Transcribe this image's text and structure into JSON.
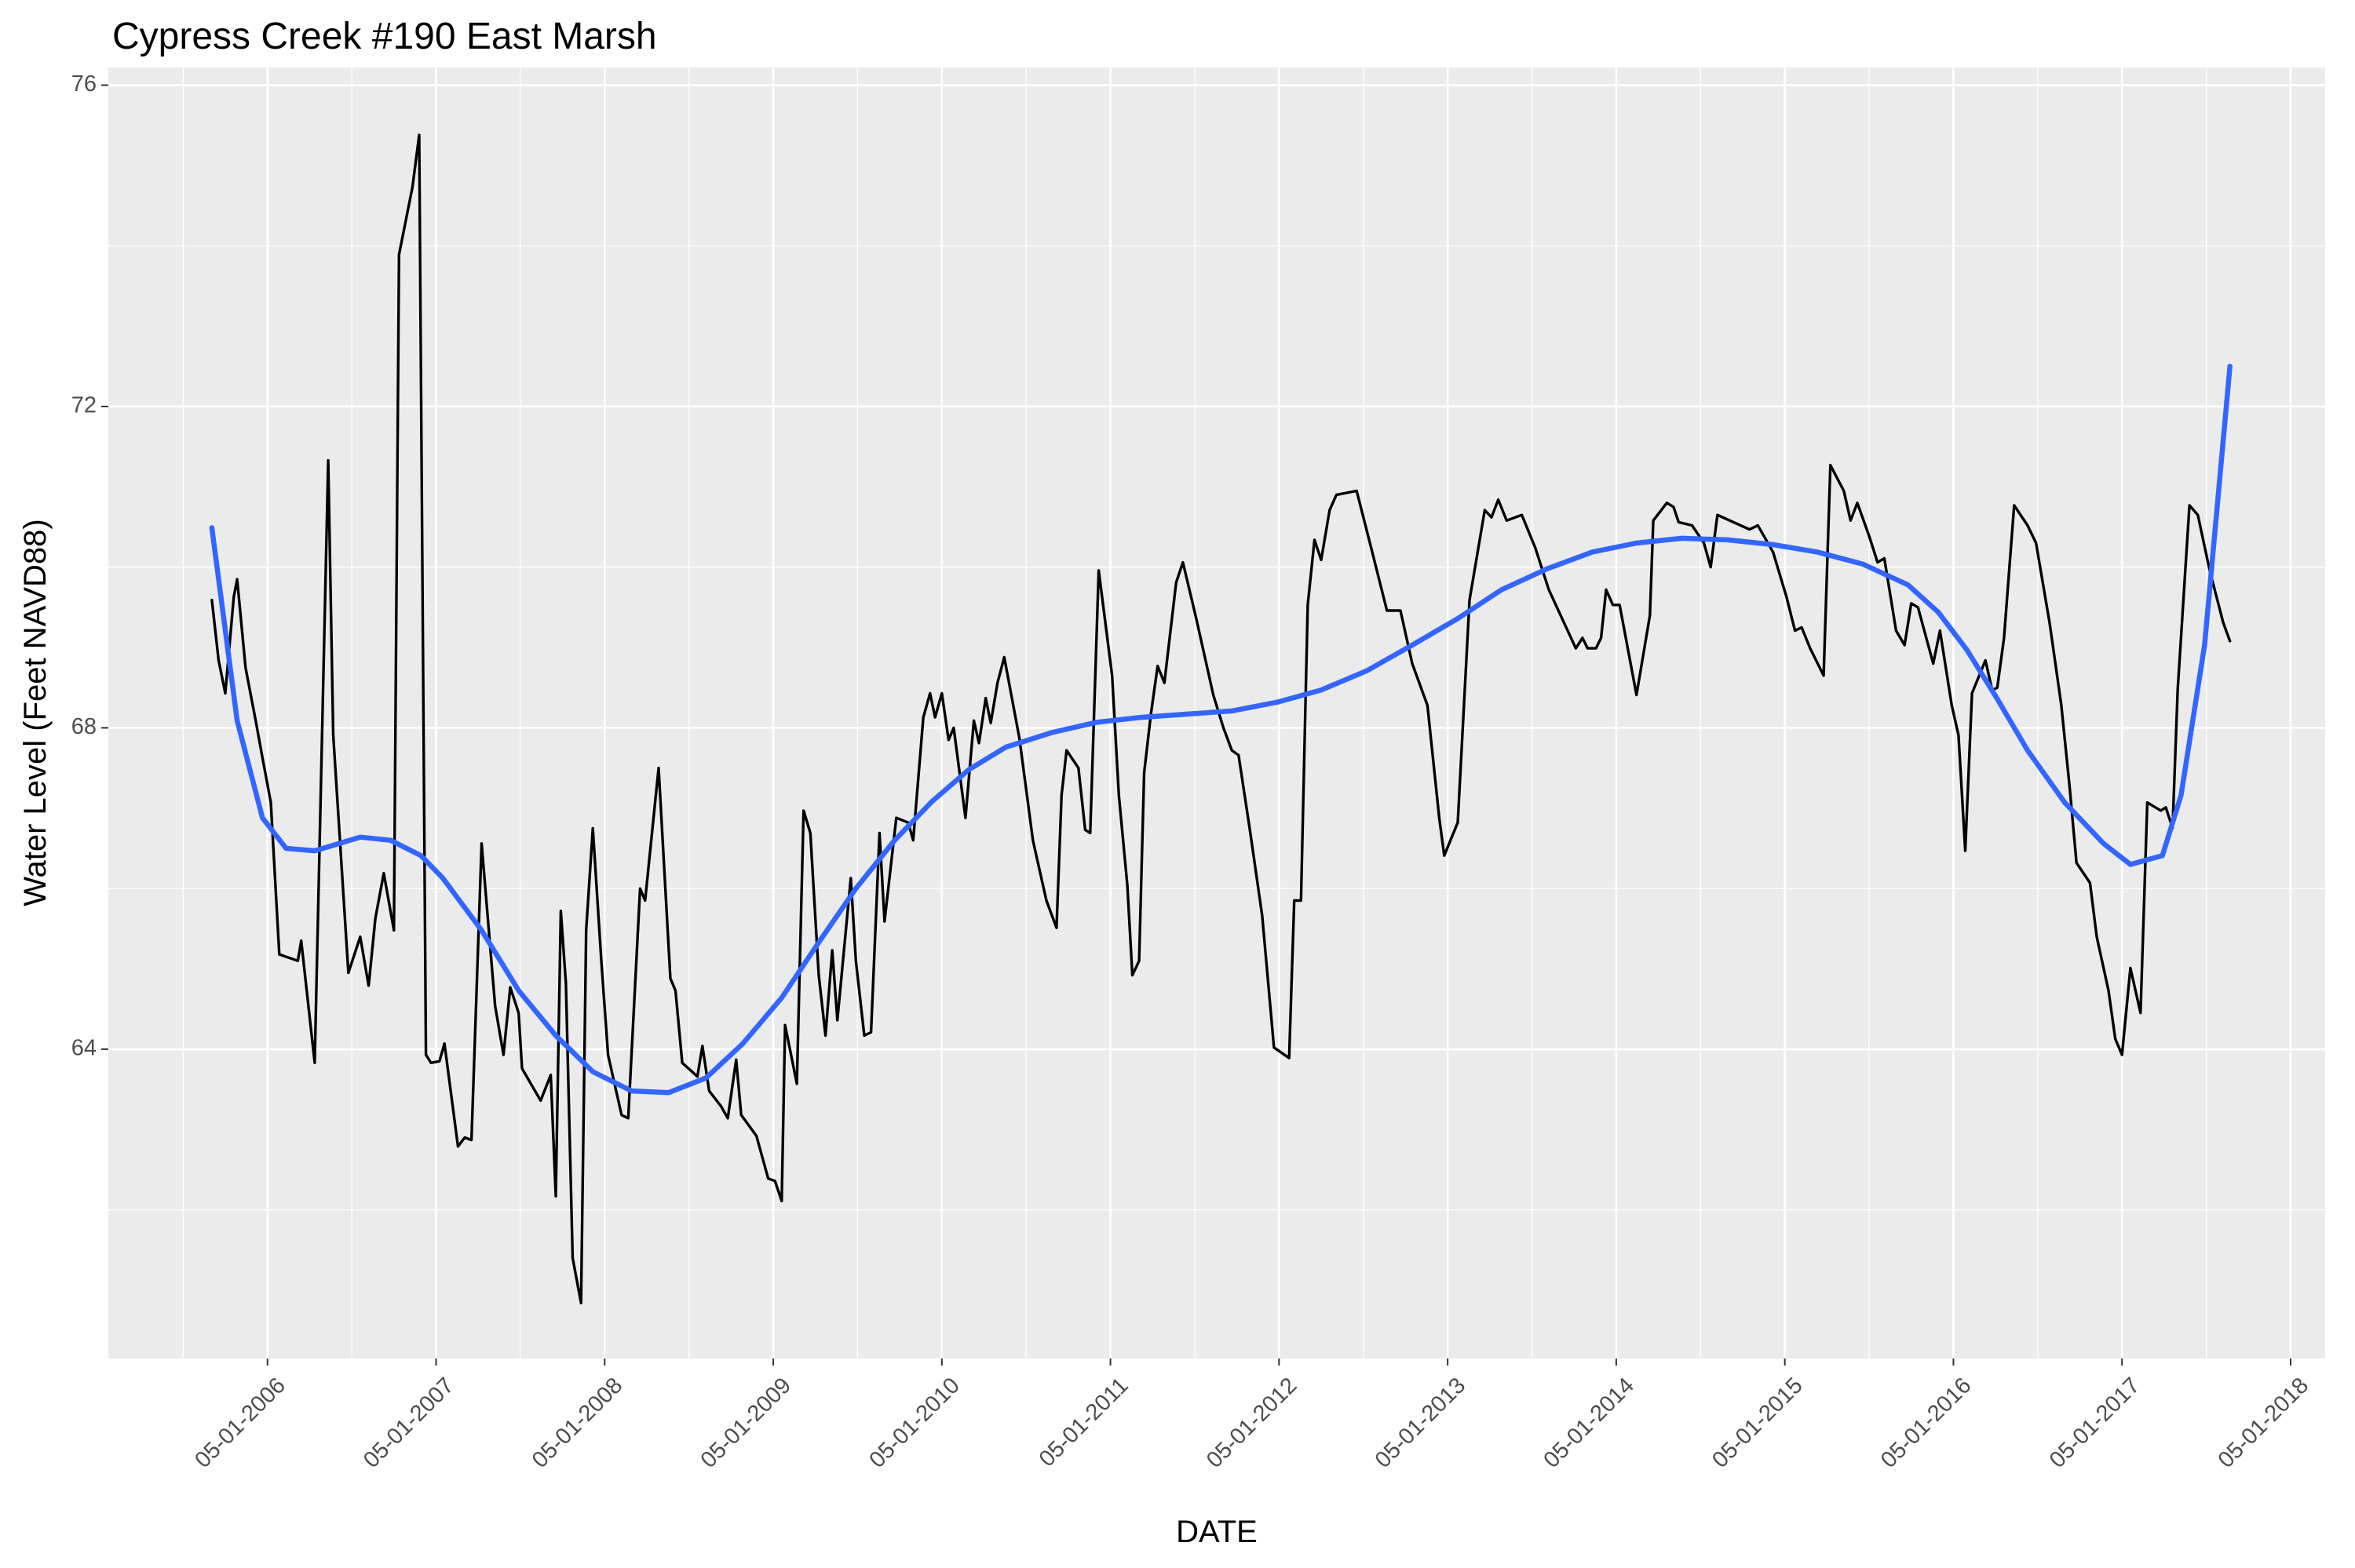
{
  "chart_data": {
    "type": "line",
    "title": "Cypress Creek #190 East Marsh",
    "x_label": "DATE",
    "y_label": "Water Level (Feet NAVD88)",
    "xlim": [
      2005.386,
      2018.535
    ],
    "ylim": [
      60.15,
      76.22
    ],
    "xticks": [
      {
        "value": 2006.33,
        "label": "05-01-2006"
      },
      {
        "value": 2007.33,
        "label": "05-01-2007"
      },
      {
        "value": 2008.33,
        "label": "05-01-2008"
      },
      {
        "value": 2009.33,
        "label": "05-01-2009"
      },
      {
        "value": 2010.33,
        "label": "05-01-2010"
      },
      {
        "value": 2011.33,
        "label": "05-01-2011"
      },
      {
        "value": 2012.33,
        "label": "05-01-2012"
      },
      {
        "value": 2013.33,
        "label": "05-01-2013"
      },
      {
        "value": 2014.33,
        "label": "05-01-2014"
      },
      {
        "value": 2015.33,
        "label": "05-01-2015"
      },
      {
        "value": 2016.33,
        "label": "05-01-2016"
      },
      {
        "value": 2017.33,
        "label": "05-01-2017"
      },
      {
        "value": 2018.33,
        "label": "05-01-2018"
      }
    ],
    "yticks": [
      64,
      68,
      72,
      76
    ],
    "grid": true,
    "series": [
      {
        "color": "#000000",
        "x": [
          2006.0,
          2006.04,
          2006.08,
          2006.13,
          2006.15,
          2006.2,
          2006.26,
          2006.3,
          2006.35,
          2006.4,
          2006.51,
          2006.53,
          2006.61,
          2006.69,
          2006.72,
          2006.81,
          2006.88,
          2006.93,
          2006.97,
          2007.02,
          2007.08,
          2007.11,
          2007.19,
          2007.23,
          2007.27,
          2007.3,
          2007.35,
          2007.38,
          2007.46,
          2007.5,
          2007.54,
          2007.6,
          2007.68,
          2007.73,
          2007.77,
          2007.82,
          2007.84,
          2007.95,
          2008.01,
          2008.04,
          2008.07,
          2008.1,
          2008.14,
          2008.19,
          2008.22,
          2008.26,
          2008.31,
          2008.35,
          2008.43,
          2008.47,
          2008.54,
          2008.57,
          2008.65,
          2008.72,
          2008.75,
          2008.79,
          2008.88,
          2008.91,
          2008.95,
          2009.02,
          2009.06,
          2009.11,
          2009.14,
          2009.23,
          2009.3,
          2009.34,
          2009.38,
          2009.4,
          2009.47,
          2009.51,
          2009.55,
          2009.6,
          2009.64,
          2009.68,
          2009.71,
          2009.79,
          2009.82,
          2009.87,
          2009.91,
          2009.96,
          2009.99,
          2010.06,
          2010.13,
          2010.16,
          2010.22,
          2010.26,
          2010.29,
          2010.33,
          2010.37,
          2010.4,
          2010.47,
          2010.52,
          2010.55,
          2010.59,
          2010.62,
          2010.66,
          2010.7,
          2010.79,
          2010.87,
          2010.95,
          2011.01,
          2011.04,
          2011.07,
          2011.14,
          2011.18,
          2011.21,
          2011.26,
          2011.34,
          2011.38,
          2011.43,
          2011.46,
          2011.5,
          2011.53,
          2011.57,
          2011.61,
          2011.65,
          2011.72,
          2011.76,
          2011.84,
          2011.94,
          2012.0,
          2012.05,
          2012.09,
          2012.16,
          2012.23,
          2012.3,
          2012.39,
          2012.42,
          2012.46,
          2012.5,
          2012.54,
          2012.58,
          2012.63,
          2012.67,
          2012.79,
          2012.88,
          2012.97,
          2013.05,
          2013.12,
          2013.21,
          2013.28,
          2013.31,
          2013.39,
          2013.46,
          2013.55,
          2013.59,
          2013.63,
          2013.68,
          2013.77,
          2013.85,
          2013.93,
          2014.02,
          2014.09,
          2014.13,
          2014.16,
          2014.21,
          2014.24,
          2014.27,
          2014.31,
          2014.35,
          2014.45,
          2014.53,
          2014.55,
          2014.63,
          2014.67,
          2014.7,
          2014.78,
          2014.85,
          2014.89,
          2014.93,
          2015.12,
          2015.17,
          2015.26,
          2015.34,
          2015.39,
          2015.43,
          2015.48,
          2015.56,
          2015.6,
          2015.68,
          2015.72,
          2015.76,
          2015.83,
          2015.88,
          2015.92,
          2015.99,
          2016.04,
          2016.08,
          2016.12,
          2016.21,
          2016.25,
          2016.32,
          2016.36,
          2016.4,
          2016.44,
          2016.52,
          2016.56,
          2016.59,
          2016.63,
          2016.69,
          2016.77,
          2016.82,
          2016.9,
          2016.97,
          2017.02,
          2017.06,
          2017.14,
          2017.18,
          2017.25,
          2017.29,
          2017.33,
          2017.38,
          2017.44,
          2017.48,
          2017.56,
          2017.59,
          2017.63,
          2017.66,
          2017.73,
          2017.78,
          2017.85,
          2017.93,
          2017.97
        ],
        "values": [
          69.59,
          68.84,
          68.43,
          69.63,
          69.85,
          68.75,
          68.09,
          67.63,
          67.07,
          65.18,
          65.1,
          65.35,
          63.83,
          71.33,
          67.91,
          64.95,
          65.4,
          64.79,
          65.63,
          66.19,
          65.48,
          73.89,
          74.73,
          75.38,
          63.93,
          63.83,
          63.85,
          64.07,
          62.79,
          62.9,
          62.87,
          66.56,
          64.54,
          63.93,
          64.77,
          64.45,
          63.76,
          63.36,
          63.68,
          62.17,
          65.72,
          64.82,
          61.4,
          60.84,
          65.48,
          66.75,
          65.1,
          63.93,
          63.18,
          63.14,
          66.0,
          65.85,
          67.5,
          64.88,
          64.73,
          63.83,
          63.66,
          64.04,
          63.48,
          63.29,
          63.14,
          63.87,
          63.18,
          62.92,
          62.39,
          62.36,
          62.11,
          64.3,
          63.57,
          66.97,
          66.69,
          64.92,
          64.17,
          65.23,
          64.36,
          66.13,
          65.1,
          64.17,
          64.21,
          66.69,
          65.59,
          66.88,
          66.82,
          66.6,
          68.13,
          68.43,
          68.13,
          68.43,
          67.85,
          68.0,
          66.88,
          68.09,
          67.81,
          68.37,
          68.06,
          68.56,
          68.88,
          67.87,
          66.6,
          65.85,
          65.51,
          67.16,
          67.72,
          67.5,
          66.73,
          66.69,
          69.96,
          68.65,
          67.16,
          66.04,
          64.92,
          65.1,
          67.44,
          68.17,
          68.77,
          68.56,
          69.81,
          70.06,
          69.35,
          68.41,
          68.0,
          67.72,
          67.66,
          66.69,
          65.66,
          64.02,
          63.89,
          65.85,
          65.85,
          69.53,
          70.34,
          70.09,
          70.71,
          70.9,
          70.95,
          70.21,
          69.46,
          69.46,
          68.8,
          68.28,
          66.88,
          66.41,
          66.82,
          69.59,
          70.71,
          70.62,
          70.84,
          70.58,
          70.65,
          70.24,
          69.72,
          69.31,
          68.99,
          69.12,
          68.99,
          68.99,
          69.12,
          69.72,
          69.53,
          69.53,
          68.41,
          69.4,
          70.58,
          70.8,
          70.75,
          70.56,
          70.52,
          70.3,
          70.0,
          70.65,
          70.47,
          70.52,
          70.19,
          69.63,
          69.21,
          69.25,
          68.99,
          68.65,
          71.27,
          70.95,
          70.58,
          70.8,
          70.39,
          70.06,
          70.11,
          69.21,
          69.03,
          69.55,
          69.5,
          68.8,
          69.21,
          68.28,
          67.91,
          66.47,
          68.43,
          68.84,
          68.47,
          68.5,
          69.12,
          70.77,
          70.52,
          70.3,
          69.31,
          68.28,
          67.25,
          66.32,
          66.07,
          65.4,
          64.73,
          64.13,
          63.93,
          65.01,
          64.45,
          67.07,
          66.97,
          67.01,
          66.75,
          68.47,
          70.77,
          70.65,
          69.96,
          69.31,
          69.08
        ]
      },
      {
        "color": "#3366FF",
        "x": [
          2006.0,
          2006.15,
          2006.3,
          2006.44,
          2006.61,
          2006.88,
          2007.06,
          2007.24,
          2007.37,
          2007.6,
          2007.82,
          2008.04,
          2008.26,
          2008.49,
          2008.71,
          2008.93,
          2009.15,
          2009.38,
          2009.6,
          2009.82,
          2010.05,
          2010.27,
          2010.49,
          2010.71,
          2010.98,
          2011.25,
          2011.51,
          2011.78,
          2012.05,
          2012.32,
          2012.58,
          2012.85,
          2013.12,
          2013.39,
          2013.65,
          2013.92,
          2014.19,
          2014.45,
          2014.72,
          2014.99,
          2015.26,
          2015.52,
          2015.79,
          2016.06,
          2016.24,
          2016.41,
          2016.59,
          2016.77,
          2016.99,
          2017.22,
          2017.38,
          2017.57,
          2017.68,
          2017.82,
          2017.97
        ],
        "values": [
          70.49,
          68.09,
          66.88,
          66.5,
          66.47,
          66.64,
          66.6,
          66.41,
          66.13,
          65.48,
          64.73,
          64.17,
          63.72,
          63.48,
          63.46,
          63.64,
          64.07,
          64.64,
          65.33,
          66.0,
          66.6,
          67.08,
          67.48,
          67.76,
          67.94,
          68.07,
          68.13,
          68.17,
          68.21,
          68.32,
          68.47,
          68.71,
          69.03,
          69.36,
          69.72,
          69.98,
          70.19,
          70.3,
          70.36,
          70.34,
          70.28,
          70.19,
          70.04,
          69.78,
          69.44,
          68.97,
          68.36,
          67.72,
          67.07,
          66.56,
          66.3,
          66.41,
          67.16,
          69.03,
          72.5
        ]
      }
    ]
  }
}
